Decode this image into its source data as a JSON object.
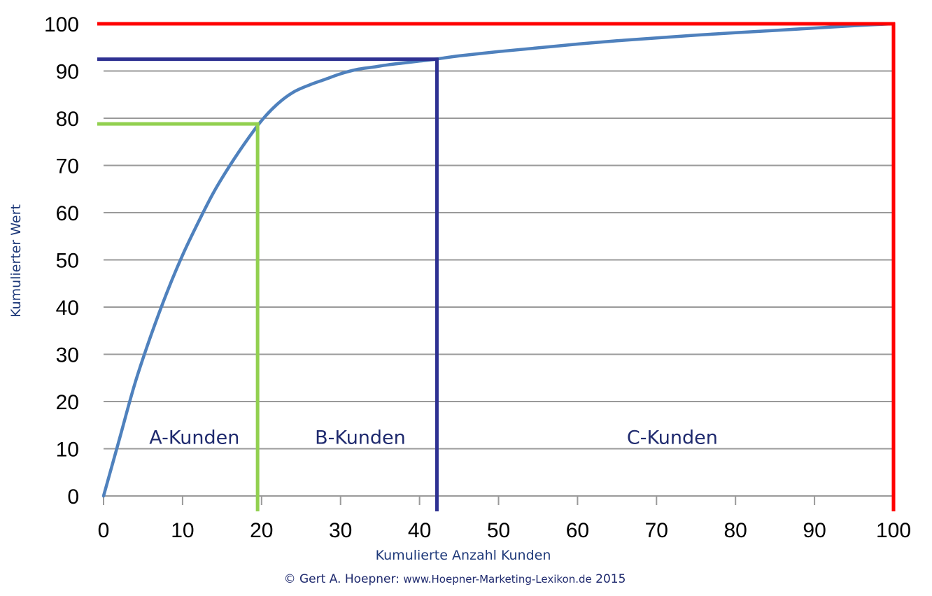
{
  "chart_data": {
    "type": "line",
    "xlabel": "Kumulierte Anzahl Kunden",
    "ylabel": "Kumulierter Wert",
    "xlim": [
      0,
      100
    ],
    "ylim": [
      0,
      100
    ],
    "x_ticks": [
      "0",
      "10",
      "20",
      "30",
      "40",
      "50",
      "60",
      "70",
      "80",
      "90",
      "100"
    ],
    "y_ticks": [
      "0",
      "10",
      "20",
      "30",
      "40",
      "50",
      "60",
      "70",
      "80",
      "90",
      "100"
    ],
    "grid": "horizontal",
    "series": [
      {
        "color": "#4f81bd",
        "points": [
          [
            0,
            0
          ],
          [
            2,
            12
          ],
          [
            4,
            24
          ],
          [
            6,
            34
          ],
          [
            8,
            43
          ],
          [
            10,
            51
          ],
          [
            12,
            58
          ],
          [
            14,
            64.5
          ],
          [
            16,
            70
          ],
          [
            18,
            75
          ],
          [
            20,
            79.5
          ],
          [
            22,
            83
          ],
          [
            24,
            85.5
          ],
          [
            26,
            87
          ],
          [
            28,
            88.2
          ],
          [
            30,
            89.4
          ],
          [
            32,
            90.3
          ],
          [
            34,
            90.8
          ],
          [
            36,
            91.3
          ],
          [
            38,
            91.7
          ],
          [
            40,
            92.1
          ],
          [
            42,
            92.5
          ],
          [
            45,
            93.2
          ],
          [
            50,
            94.1
          ],
          [
            55,
            94.9
          ],
          [
            60,
            95.7
          ],
          [
            65,
            96.4
          ],
          [
            70,
            97.0
          ],
          [
            75,
            97.6
          ],
          [
            80,
            98.1
          ],
          [
            85,
            98.6
          ],
          [
            90,
            99.1
          ],
          [
            95,
            99.6
          ],
          [
            100,
            100
          ]
        ]
      }
    ],
    "reference_lines": [
      {
        "name": "A-boundary",
        "color": "#92d050",
        "x": 19.5,
        "y": 78.8
      },
      {
        "name": "B-boundary",
        "color": "#2e3192",
        "x": 42.2,
        "y": 92.5
      },
      {
        "name": "C-boundary",
        "color": "#ff0000",
        "x": 100,
        "y": 100
      }
    ],
    "annotations": [
      {
        "text": "A-Kunden",
        "x": 11.5,
        "y": 12.5
      },
      {
        "text": "B-Kunden",
        "x": 32.5,
        "y": 12.5
      },
      {
        "text": "C-Kunden",
        "x": 72,
        "y": 12.5
      }
    ]
  },
  "credit": {
    "prefix": "© Gert A. Hoepner: ",
    "site": "www.Hoepner-Marketing-Lexikon.de",
    "suffix": " 2015"
  }
}
